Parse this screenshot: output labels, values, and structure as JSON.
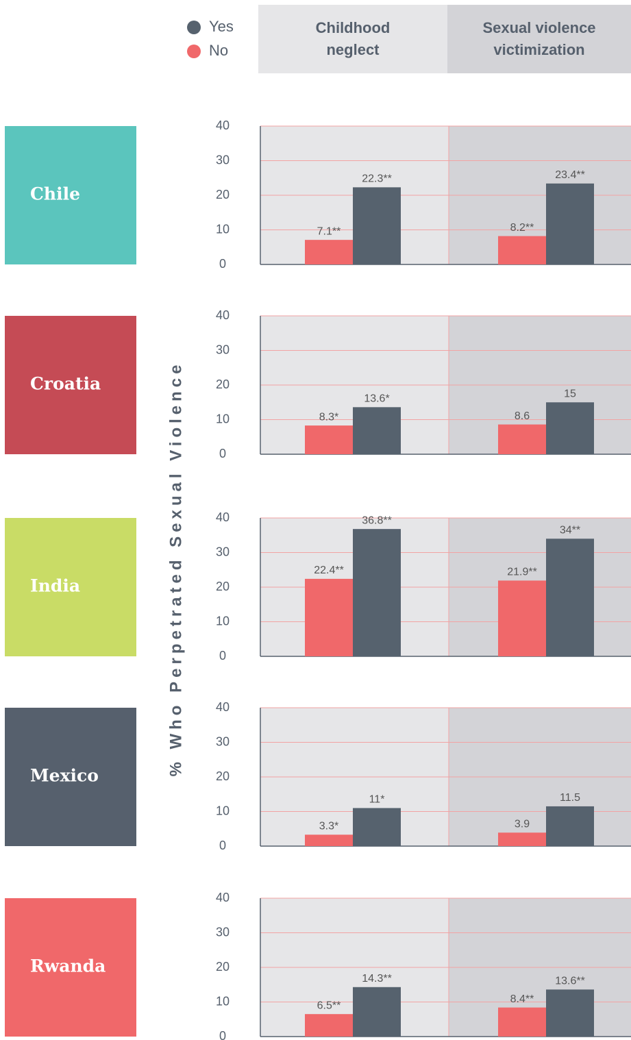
{
  "chart_data": {
    "type": "bar",
    "ylabel": "% Who Perpetrated Sexual Violence",
    "panels": [
      "Childhood neglect",
      "Sexual violence victimization"
    ],
    "categories": [
      "Chile",
      "Croatia",
      "India",
      "Mexico",
      "Rwanda"
    ],
    "category_colors": [
      "#5bc5bd",
      "#c54b55",
      "#c9dc66",
      "#56606d",
      "#f0686a"
    ],
    "series": [
      {
        "name": "Yes",
        "color": "#56626e",
        "values": [
          [
            22.3,
            23.4
          ],
          [
            13.6,
            15
          ],
          [
            36.8,
            34
          ],
          [
            11,
            11.5
          ],
          [
            14.3,
            13.6
          ]
        ],
        "value_labels": [
          [
            "22.3**",
            "23.4**"
          ],
          [
            "13.6*",
            "15"
          ],
          [
            "36.8**",
            "34**"
          ],
          [
            "11*",
            "11.5"
          ],
          [
            "14.3**",
            "13.6**"
          ]
        ]
      },
      {
        "name": "No",
        "color": "#f0686a",
        "values": [
          [
            7.1,
            8.2
          ],
          [
            8.3,
            8.6
          ],
          [
            22.4,
            21.9
          ],
          [
            3.3,
            3.9
          ],
          [
            6.5,
            8.4
          ]
        ],
        "value_labels": [
          [
            "7.1**",
            "8.2**"
          ],
          [
            "8.3*",
            "8.6"
          ],
          [
            "22.4**",
            "21.9**"
          ],
          [
            "3.3*",
            "3.9"
          ],
          [
            "6.5**",
            "8.4**"
          ]
        ]
      }
    ],
    "ylim": [
      0,
      40
    ],
    "yticks": [
      0,
      10,
      20,
      30,
      40
    ],
    "grid": true
  }
}
